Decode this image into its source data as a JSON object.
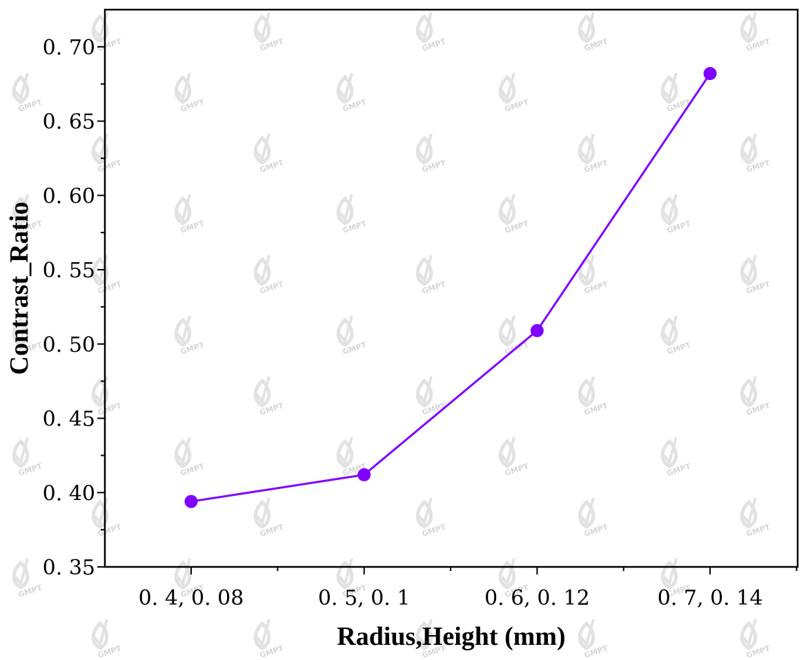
{
  "chart_data": {
    "type": "line",
    "categories": [
      "0. 4, 0. 08",
      "0. 5, 0. 1",
      "0. 6, 0. 12",
      "0. 7, 0. 14"
    ],
    "series": [
      {
        "values": [
          0.394,
          0.412,
          0.509,
          0.682
        ]
      }
    ],
    "xlabel": "Radius,Height (mm)",
    "ylabel": "Contrast_Ratio",
    "ylim": [
      0.35,
      0.725
    ],
    "yticks": [
      "0. 35",
      "0. 40",
      "0. 45",
      "0. 50",
      "0. 55",
      "0. 60",
      "0. 65",
      "0. 70"
    ],
    "ytick_values": [
      0.35,
      0.4,
      0.45,
      0.5,
      0.55,
      0.6,
      0.65,
      0.7
    ],
    "grid": false,
    "line_color": "#8000ff",
    "marker_color": "#8000ff",
    "watermark_text": "GMPT"
  }
}
